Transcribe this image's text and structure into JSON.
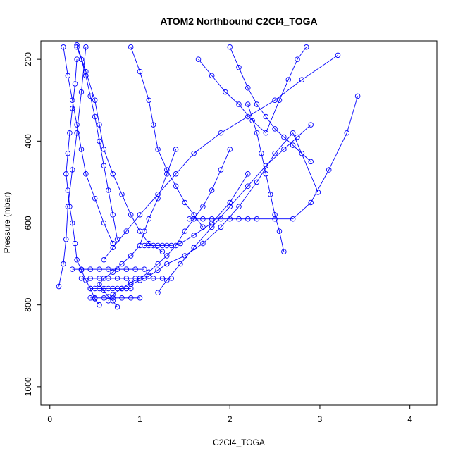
{
  "chart_data": {
    "type": "line",
    "title": "ATOM2 Northbound C2Cl4_TOGA",
    "xlabel": "C2Cl4_TOGA",
    "ylabel": "Pressure (mbar)",
    "xlim": [
      -0.1,
      4.3
    ],
    "ylim": [
      1045,
      155
    ],
    "y_reversed": true,
    "x_ticks": [
      0,
      1,
      2,
      3,
      4
    ],
    "y_ticks": [
      200,
      400,
      600,
      800,
      1000
    ],
    "grid": false,
    "legend": "none",
    "line_color": "#0000ff",
    "marker": "open-circle",
    "series": [
      {
        "x": [
          0.75,
          0.7,
          0.65,
          0.6,
          0.55,
          0.6,
          0.7,
          0.8,
          0.9,
          1.0,
          1.05,
          1.1,
          1.2,
          1.3,
          1.4
        ],
        "y": [
          805,
          790,
          780,
          765,
          750,
          735,
          720,
          700,
          680,
          655,
          620,
          590,
          540,
          480,
          420
        ]
      },
      {
        "x": [
          0.55,
          0.5,
          0.45,
          0.4,
          0.35,
          0.3,
          0.28,
          0.25,
          0.22,
          0.2,
          0.18,
          0.2,
          0.22,
          0.25,
          0.28,
          0.3
        ],
        "y": [
          800,
          785,
          760,
          740,
          715,
          690,
          650,
          600,
          560,
          520,
          480,
          430,
          380,
          320,
          260,
          200
        ]
      },
      {
        "x": [
          0.65,
          0.7,
          0.8,
          0.9,
          1.0,
          1.1,
          1.2,
          1.3,
          1.4,
          1.5,
          1.6,
          1.7,
          1.8,
          1.9,
          2.0
        ],
        "y": [
          790,
          775,
          760,
          745,
          735,
          720,
          700,
          680,
          655,
          620,
          590,
          560,
          520,
          470,
          420
        ]
      },
      {
        "x": [
          1.55,
          1.6,
          1.7,
          1.8,
          1.9,
          2.0,
          2.1,
          2.2,
          2.3,
          2.5,
          2.7,
          2.9,
          3.1,
          3.3,
          3.42
        ],
        "y": [
          590,
          590,
          590,
          590,
          590,
          590,
          590,
          590,
          590,
          590,
          590,
          550,
          470,
          380,
          290
        ]
      },
      {
        "x": [
          0.35,
          0.45,
          0.55,
          0.65,
          0.75,
          0.85,
          0.95,
          1.05,
          1.15,
          1.25,
          1.35
        ],
        "y": [
          735,
          735,
          735,
          735,
          735,
          735,
          735,
          735,
          735,
          735,
          735
        ]
      },
      {
        "x": [
          0.25,
          0.35,
          0.45,
          0.55,
          0.65,
          0.75,
          0.85,
          0.95,
          1.05
        ],
        "y": [
          713,
          713,
          713,
          713,
          713,
          713,
          713,
          713,
          713
        ]
      },
      {
        "x": [
          1.05,
          1.1,
          1.15,
          1.2,
          1.25,
          1.3,
          1.35,
          1.45,
          1.6,
          1.8,
          2.0,
          2.2
        ],
        "y": [
          655,
          655,
          655,
          655,
          655,
          655,
          655,
          650,
          630,
          600,
          550,
          480
        ]
      },
      {
        "x": [
          0.45,
          0.5,
          0.55,
          0.6,
          0.65,
          0.7,
          0.75,
          0.8,
          0.85,
          0.9
        ],
        "y": [
          760,
          760,
          760,
          760,
          760,
          760,
          760,
          760,
          760,
          760
        ]
      },
      {
        "x": [
          0.45,
          0.5,
          0.6,
          0.7,
          0.8,
          0.9,
          1.0
        ],
        "y": [
          783,
          783,
          783,
          783,
          783,
          783,
          783
        ]
      },
      {
        "x": [
          0.1,
          0.15,
          0.18,
          0.2,
          0.25,
          0.3,
          0.35,
          0.4
        ],
        "y": [
          755,
          700,
          640,
          560,
          470,
          380,
          280,
          170
        ]
      },
      {
        "x": [
          0.9,
          1.0,
          1.1,
          1.2,
          1.3,
          1.5,
          1.7,
          1.9,
          2.1,
          2.3,
          2.5,
          2.7,
          2.98
        ],
        "y": [
          750,
          740,
          730,
          715,
          700,
          680,
          650,
          610,
          560,
          500,
          430,
          380,
          525
        ]
      },
      {
        "x": [
          0.6,
          0.7,
          0.85,
          1.0,
          1.2,
          1.4,
          1.6,
          1.9,
          2.2,
          2.5,
          2.8,
          3.2
        ],
        "y": [
          690,
          660,
          620,
          580,
          530,
          480,
          430,
          380,
          340,
          300,
          250,
          190
        ]
      },
      {
        "x": [
          0.15,
          0.2,
          0.25,
          0.3,
          0.35,
          0.4,
          0.5,
          0.6,
          0.7
        ],
        "y": [
          170,
          240,
          300,
          360,
          420,
          480,
          540,
          600,
          650
        ]
      },
      {
        "x": [
          1.2,
          1.3,
          1.45,
          1.6,
          1.8,
          2.0,
          2.2,
          2.4,
          2.6,
          2.75,
          2.9
        ],
        "y": [
          770,
          740,
          700,
          660,
          610,
          560,
          510,
          460,
          420,
          390,
          360
        ]
      },
      {
        "x": [
          0.3,
          0.4,
          0.5,
          0.55,
          0.6,
          0.7,
          0.8,
          0.9,
          1.0,
          1.1,
          1.25
        ],
        "y": [
          165,
          230,
          300,
          360,
          420,
          480,
          530,
          580,
          620,
          650,
          670
        ]
      },
      {
        "x": [
          2.0,
          2.1,
          2.2,
          2.3,
          2.4,
          2.5,
          2.6,
          2.7,
          2.8,
          2.9
        ],
        "y": [
          170,
          220,
          270,
          310,
          340,
          370,
          390,
          410,
          430,
          450
        ]
      },
      {
        "x": [
          0.9,
          1.0,
          1.1,
          1.15,
          1.2,
          1.3,
          1.4,
          1.5,
          1.6,
          1.7
        ],
        "y": [
          170,
          230,
          300,
          360,
          420,
          470,
          510,
          550,
          580,
          610
        ]
      },
      {
        "x": [
          2.2,
          2.3,
          2.35,
          2.4,
          2.45,
          2.5,
          2.55,
          2.6
        ],
        "y": [
          310,
          380,
          430,
          480,
          530,
          580,
          620,
          670
        ]
      },
      {
        "x": [
          1.65,
          1.8,
          1.95,
          2.1,
          2.25,
          2.4,
          2.55,
          2.65,
          2.75,
          2.85
        ],
        "y": [
          200,
          240,
          280,
          310,
          350,
          380,
          300,
          250,
          200,
          170
        ]
      },
      {
        "x": [
          0.3,
          0.35,
          0.4,
          0.45,
          0.5,
          0.55,
          0.6,
          0.65,
          0.7,
          0.75
        ],
        "y": [
          170,
          200,
          240,
          290,
          340,
          400,
          460,
          520,
          580,
          640
        ]
      }
    ]
  }
}
